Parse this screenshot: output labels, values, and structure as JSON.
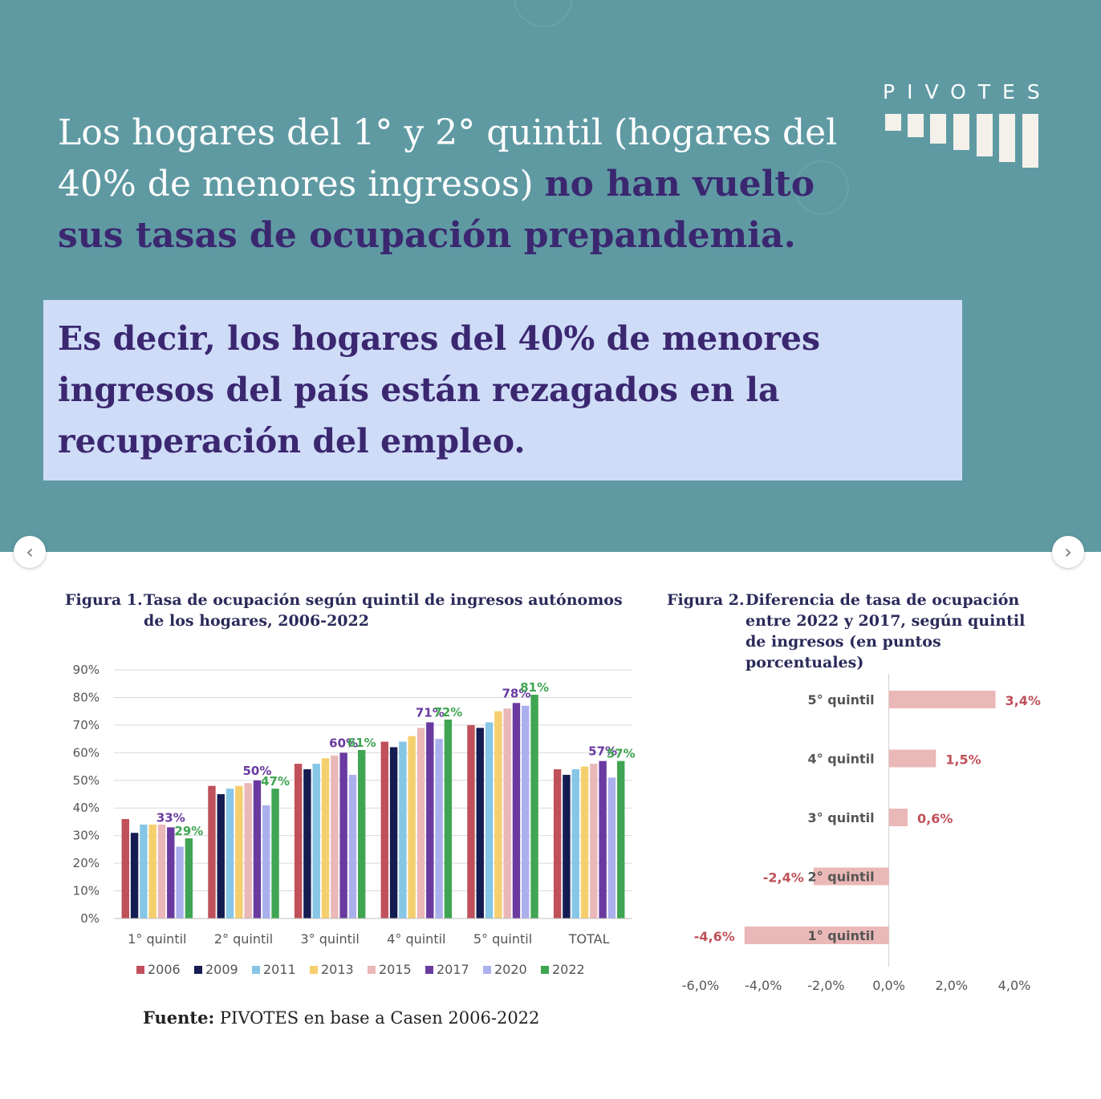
{
  "headline": {
    "part1": "Los hogares del 1° y 2° quintil (hogares del 40% de menores ingresos) ",
    "part2": "no han vuelto sus tasas de ocupación prepandemia."
  },
  "callout": {
    "text": "Es decir, los hogares del 40% de menores ingresos del país están rezagados en la recuperación del empleo."
  },
  "logo": {
    "word": "PIVOTES"
  },
  "nav": {
    "prev_icon": "chevron-left-icon",
    "next_icon": "chevron-right-icon"
  },
  "figure1": {
    "number": "Figura 1.",
    "title": "Tasa de ocupación según quintil de ingresos autónomos de los hogares, 2006-2022"
  },
  "figure2": {
    "number": "Figura 2.",
    "title": "Diferencia de tasa de ocupación entre 2022 y 2017, según quintil de ingresos (en puntos porcentuales)"
  },
  "source": {
    "label": "Fuente:",
    "text": " PIVOTES en base a Casen 2006-2022"
  },
  "colors": {
    "hero_bg": "#5f9aa3",
    "accent": "#3b2770",
    "callout_bg": "#cfdcf8",
    "bar2": "#eab8b7",
    "bar2_label": "#c0505a"
  },
  "chart_data": [
    {
      "type": "bar",
      "title": "",
      "categories": [
        "1° quintil",
        "2° quintil",
        "3° quintil",
        "4° quintil",
        "5° quintil",
        "TOTAL"
      ],
      "ylim": [
        0,
        90
      ],
      "yticks": [
        "0%",
        "10%",
        "20%",
        "30%",
        "40%",
        "50%",
        "60%",
        "70%",
        "80%",
        "90%"
      ],
      "grid": true,
      "legend_position": "bottom",
      "series": [
        {
          "name": "2006",
          "color": "#c0505a",
          "values": [
            36,
            48,
            56,
            64,
            70,
            54
          ]
        },
        {
          "name": "2009",
          "color": "#141c52",
          "values": [
            31,
            45,
            54,
            62,
            69,
            52
          ]
        },
        {
          "name": "2011",
          "color": "#86c6e6",
          "values": [
            34,
            47,
            56,
            64,
            71,
            54
          ]
        },
        {
          "name": "2013",
          "color": "#f5cf6e",
          "values": [
            34,
            48,
            58,
            66,
            75,
            55
          ]
        },
        {
          "name": "2015",
          "color": "#eab8b7",
          "values": [
            34,
            49,
            59,
            69,
            76,
            56
          ]
        },
        {
          "name": "2017",
          "color": "#6a3aa0",
          "values": [
            33,
            50,
            60,
            71,
            78,
            57
          ]
        },
        {
          "name": "2020",
          "color": "#aab0ec",
          "values": [
            26,
            41,
            52,
            65,
            77,
            51
          ]
        },
        {
          "name": "2022",
          "color": "#3fa552",
          "values": [
            29,
            47,
            61,
            72,
            81,
            57
          ]
        }
      ],
      "data_labels": {
        "2017": [
          "33%",
          "50%",
          "60%",
          "71%",
          "78%",
          "57%"
        ],
        "2022": [
          "29%",
          "47%",
          "61%",
          "72%",
          "81%",
          "57%"
        ]
      }
    },
    {
      "type": "bar",
      "orientation": "horizontal",
      "title": "",
      "categories": [
        "5° quintil",
        "4° quintil",
        "3° quintil",
        "2° quintil",
        "1° quintil"
      ],
      "values": [
        3.4,
        1.5,
        0.6,
        -2.4,
        -4.6
      ],
      "data_labels": [
        "3,4%",
        "1,5%",
        "0,6%",
        "-2,4%",
        "-4,6%"
      ],
      "xlim": [
        -6,
        4
      ],
      "xticks": [
        "-6,0%",
        "-4,0%",
        "-2,0%",
        "0,0%",
        "2,0%",
        "4,0%"
      ],
      "grid": false
    }
  ]
}
